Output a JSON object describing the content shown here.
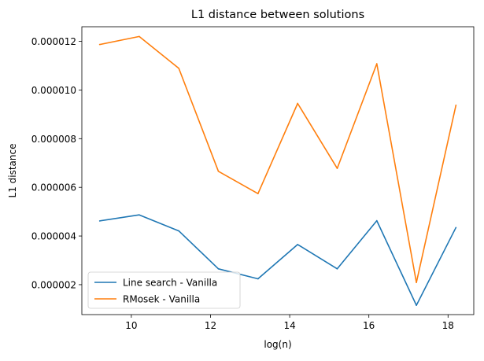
{
  "chart_data": {
    "type": "line",
    "title": "L1 distance between solutions",
    "xlabel": "log(n)",
    "ylabel": "L1 distance",
    "x": [
      9.2,
      10.2,
      11.2,
      12.2,
      13.2,
      14.2,
      15.2,
      16.2,
      17.2,
      18.2
    ],
    "xlim": [
      8.75,
      18.65
    ],
    "ylim": [
      7.7e-07,
      1.26e-05
    ],
    "xticks": [
      10,
      12,
      14,
      16,
      18
    ],
    "xtick_labels": [
      "10",
      "12",
      "14",
      "16",
      "18"
    ],
    "yticks": [
      2e-06,
      4e-06,
      6e-06,
      8e-06,
      1e-05,
      1.2e-05
    ],
    "ytick_labels": [
      "0.000002",
      "0.000004",
      "0.000006",
      "0.000008",
      "0.000010",
      "0.000012"
    ],
    "grid": false,
    "legend_position": "lower-left",
    "series": [
      {
        "name": "Line search - Vanilla",
        "color": "#1f77b4",
        "values": [
          4.62e-06,
          4.87e-06,
          4.21e-06,
          2.65e-06,
          2.24e-06,
          3.65e-06,
          2.65e-06,
          4.63e-06,
          1.15e-06,
          4.35e-06
        ]
      },
      {
        "name": "RMosek - Vanilla",
        "color": "#ff7f0e",
        "values": [
          1.187e-05,
          1.22e-05,
          1.089e-05,
          6.66e-06,
          5.74e-06,
          9.45e-06,
          6.78e-06,
          1.108e-05,
          2.09e-06,
          9.38e-06
        ]
      }
    ]
  }
}
